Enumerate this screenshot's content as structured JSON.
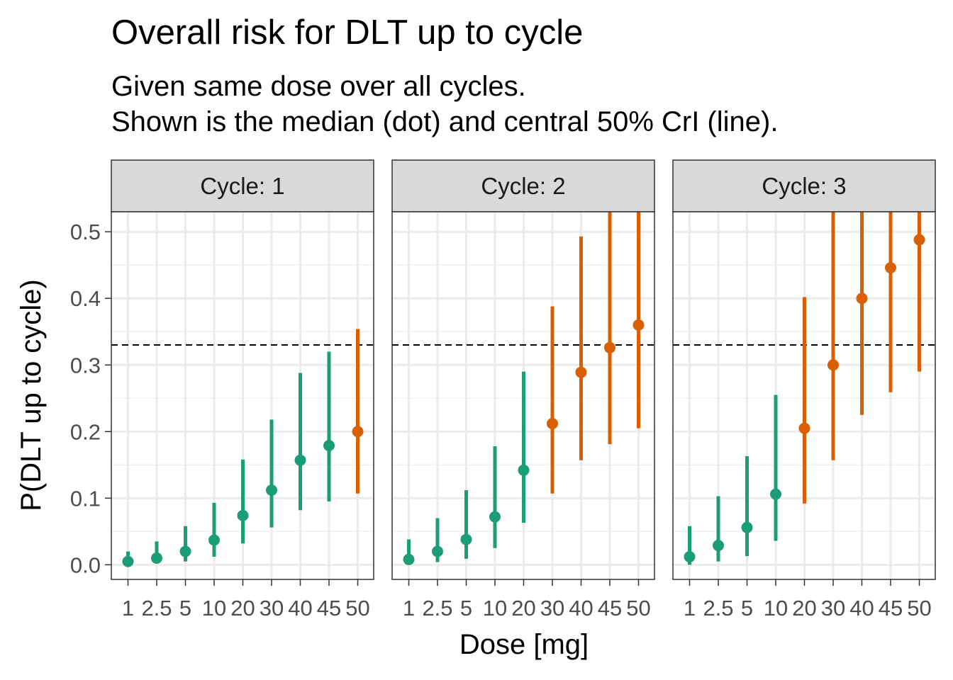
{
  "chart_data": {
    "type": "scatter",
    "title": "Overall risk for DLT up to cycle",
    "subtitle": [
      "Given same dose over all cycles.",
      "Shown is the median (dot) and central 50% CrI (line)."
    ],
    "xlabel": "Dose [mg]",
    "ylabel": "P(DLT up to cycle)",
    "categories": [
      "1",
      "2.5",
      "5",
      "10",
      "20",
      "30",
      "40",
      "45",
      "50"
    ],
    "ylim": [
      -0.022,
      0.53
    ],
    "yticks": [
      "0.0",
      "0.1",
      "0.2",
      "0.3",
      "0.4",
      "0.5"
    ],
    "reference_line": {
      "y": 0.33,
      "style": "dashed",
      "color": "#000000"
    },
    "grid": true,
    "colors": {
      "below": "#1b9e77",
      "above": "#d95f02"
    },
    "panels": [
      {
        "label": "Cycle: 1",
        "median": [
          0.005,
          0.01,
          0.02,
          0.037,
          0.074,
          0.112,
          0.157,
          0.179,
          0.2
        ],
        "lower": [
          0.0,
          0.003,
          0.005,
          0.012,
          0.032,
          0.056,
          0.082,
          0.095,
          0.107
        ],
        "upper": [
          0.02,
          0.035,
          0.058,
          0.093,
          0.158,
          0.218,
          0.288,
          0.32,
          0.354
        ],
        "above_threshold": [
          false,
          false,
          false,
          false,
          false,
          false,
          false,
          false,
          true
        ]
      },
      {
        "label": "Cycle: 2",
        "median": [
          0.008,
          0.02,
          0.038,
          0.072,
          0.142,
          0.212,
          0.289,
          0.326,
          0.36
        ],
        "lower": [
          0.0,
          0.004,
          0.009,
          0.025,
          0.063,
          0.107,
          0.157,
          0.181,
          0.205
        ],
        "upper": [
          0.038,
          0.07,
          0.112,
          0.178,
          0.29,
          0.388,
          0.493,
          0.53,
          0.53
        ],
        "above_threshold": [
          false,
          false,
          false,
          false,
          false,
          true,
          true,
          true,
          true
        ]
      },
      {
        "label": "Cycle: 3",
        "median": [
          0.012,
          0.029,
          0.056,
          0.106,
          0.205,
          0.3,
          0.4,
          0.446,
          0.488
        ],
        "lower": [
          0.0,
          0.005,
          0.013,
          0.036,
          0.092,
          0.157,
          0.225,
          0.259,
          0.29
        ],
        "upper": [
          0.058,
          0.103,
          0.163,
          0.255,
          0.402,
          0.53,
          0.53,
          0.53,
          0.53
        ],
        "above_threshold": [
          false,
          false,
          false,
          false,
          true,
          true,
          true,
          true,
          true
        ]
      }
    ]
  }
}
